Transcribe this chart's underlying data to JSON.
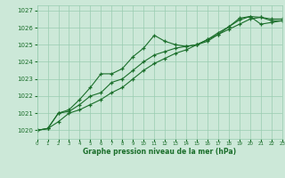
{
  "title": "Graphe pression niveau de la mer (hPa)",
  "bg_color": "#cce8d8",
  "grid_color": "#99ccb0",
  "line_color": "#1a6e2a",
  "x_min": 0,
  "x_max": 23,
  "y_min": 1019.5,
  "y_max": 1027.3,
  "y_ticks": [
    1020,
    1021,
    1022,
    1023,
    1024,
    1025,
    1026,
    1027
  ],
  "x_ticks": [
    0,
    1,
    2,
    3,
    4,
    5,
    6,
    7,
    8,
    9,
    10,
    11,
    12,
    13,
    14,
    15,
    16,
    17,
    18,
    19,
    20,
    21,
    22,
    23
  ],
  "series1": [
    1020.0,
    1020.1,
    1021.0,
    1021.2,
    1021.8,
    1022.5,
    1023.3,
    1023.3,
    1023.6,
    1024.3,
    1024.8,
    1025.55,
    1025.2,
    1025.0,
    1024.9,
    1025.0,
    1025.2,
    1025.6,
    1026.05,
    1026.55,
    1026.65,
    1026.6,
    1026.4,
    1026.4
  ],
  "series2": [
    1020.0,
    1020.1,
    1021.0,
    1021.1,
    1021.5,
    1022.0,
    1022.2,
    1022.8,
    1023.0,
    1023.5,
    1024.0,
    1024.4,
    1024.6,
    1024.8,
    1024.9,
    1025.0,
    1025.3,
    1025.7,
    1026.05,
    1026.45,
    1026.65,
    1026.2,
    1026.3,
    1026.4
  ],
  "series3": [
    1020.0,
    1020.1,
    1020.5,
    1021.0,
    1021.2,
    1021.5,
    1021.8,
    1022.2,
    1022.5,
    1023.0,
    1023.5,
    1023.9,
    1024.2,
    1024.5,
    1024.7,
    1025.0,
    1025.3,
    1025.6,
    1025.9,
    1026.2,
    1026.5,
    1026.6,
    1026.5,
    1026.5
  ],
  "figwidth": 3.2,
  "figheight": 2.0,
  "dpi": 100
}
